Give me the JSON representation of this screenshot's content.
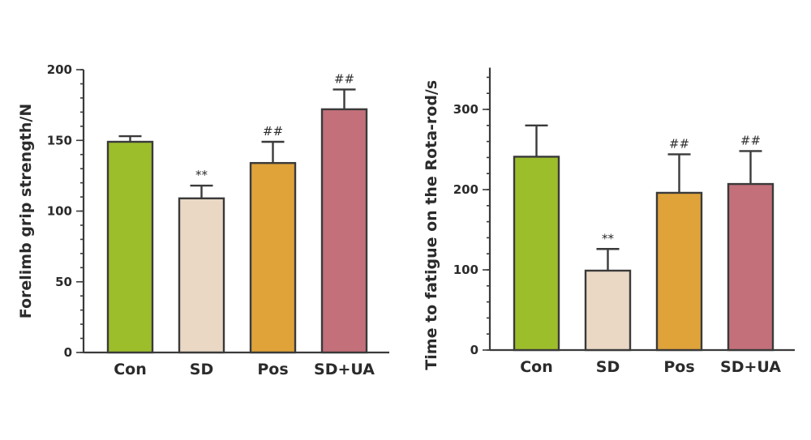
{
  "chart_data": [
    {
      "type": "bar",
      "categories": [
        "Con",
        "SD",
        "Pos",
        "SD+UA"
      ],
      "values": [
        149,
        109,
        134,
        172
      ],
      "errors": [
        4,
        9,
        15,
        14
      ],
      "colors": [
        "#9dbe2b",
        "#ead8c5",
        "#dfa33a",
        "#c3707a"
      ],
      "annotations": [
        "",
        "**",
        "##",
        "##"
      ],
      "title": "",
      "xlabel": "",
      "ylabel": "Forelimb grip strength/N",
      "ylim": [
        0,
        200
      ],
      "major_ticks": [
        0,
        50,
        100,
        150,
        200
      ],
      "minor_step": 10
    },
    {
      "type": "bar",
      "categories": [
        "Con",
        "SD",
        "Pos",
        "SD+UA"
      ],
      "values": [
        241,
        99,
        196,
        207
      ],
      "errors": [
        39,
        27,
        48,
        41
      ],
      "colors": [
        "#9dbe2b",
        "#ead8c5",
        "#dfa33a",
        "#c3707a"
      ],
      "annotations": [
        "",
        "**",
        "##",
        "##"
      ],
      "title": "",
      "xlabel": "",
      "ylabel": "Time to fatigue on the Rota-rod/s",
      "ylim": [
        0,
        350
      ],
      "major_ticks": [
        0,
        100,
        200,
        300
      ],
      "minor_step": 20
    }
  ]
}
